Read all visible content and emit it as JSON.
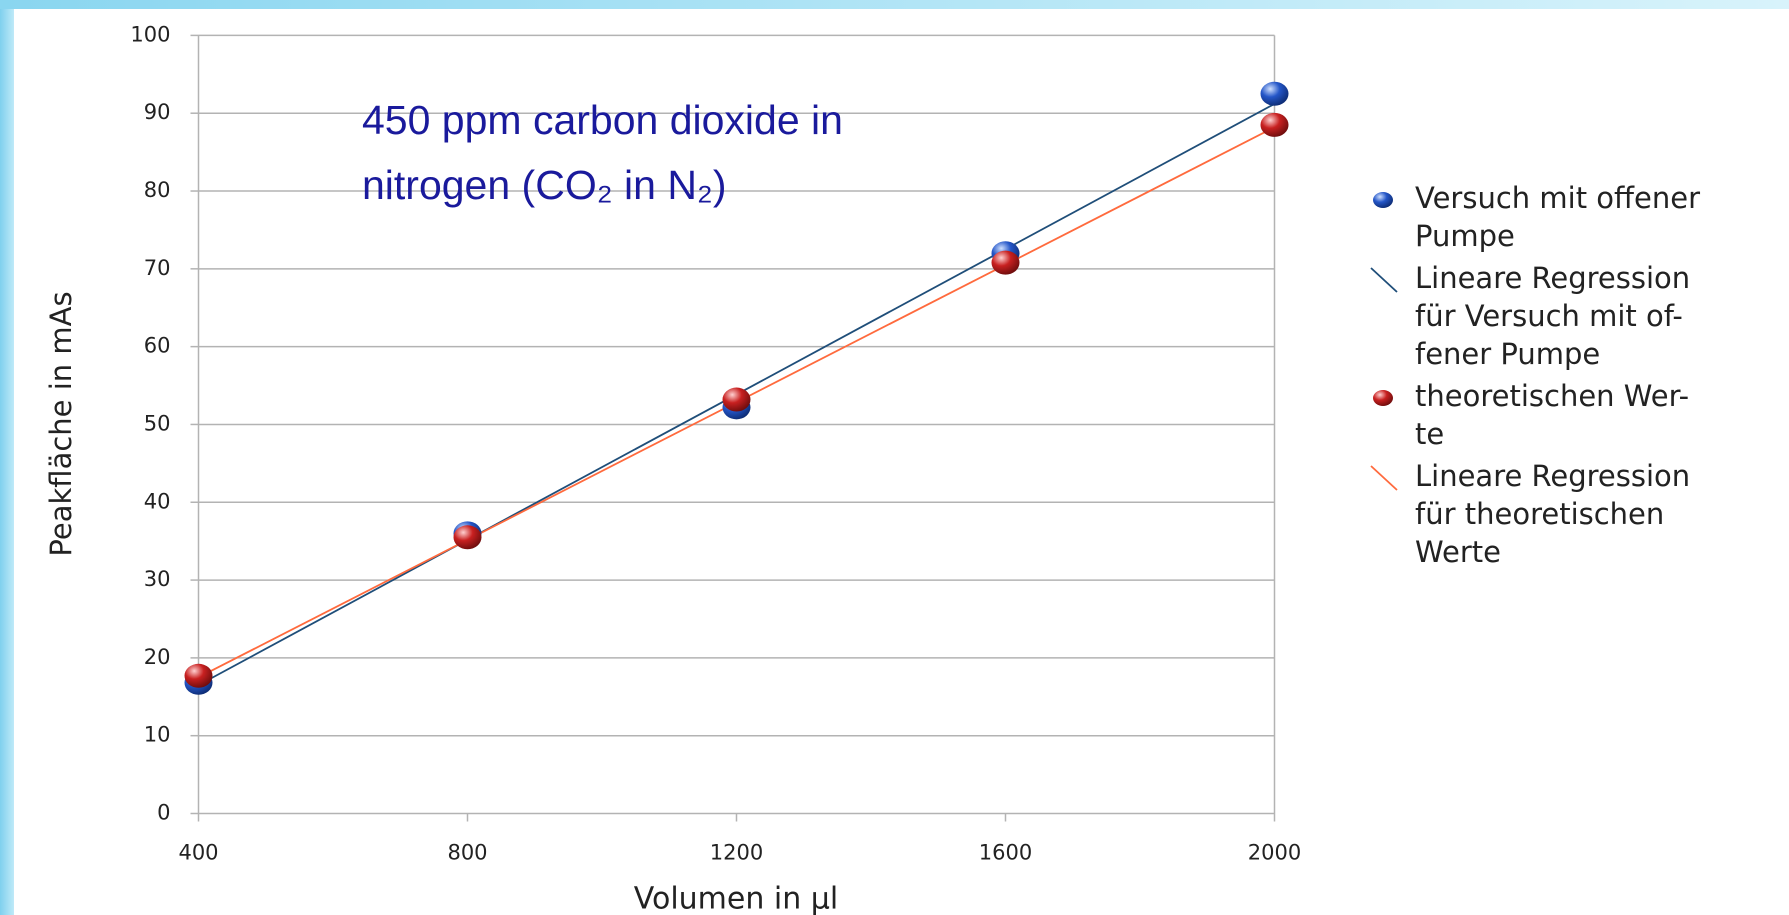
{
  "chart_data": {
    "type": "scatter",
    "annotation": "450 ppm carbon dioxide in nitrogen (CO₂ in N₂)",
    "xlabel": "Volumen in µl",
    "ylabel": "Peakfläche in mAs",
    "xlim": [
      400,
      2000
    ],
    "xticks": [
      400,
      800,
      1200,
      1600,
      2000
    ],
    "ylim": [
      0,
      100
    ],
    "yticks": [
      0,
      10,
      20,
      30,
      40,
      50,
      60,
      70,
      80,
      90,
      100
    ],
    "grid": true,
    "legend": "right",
    "series": [
      {
        "name": "Versuch mit offener\nPumpe",
        "color": "#2456c8",
        "mode": "markers",
        "x": [
          400,
          800,
          1200,
          1600,
          2000
        ],
        "values": [
          16.8,
          36,
          52.2,
          72,
          92.5
        ]
      },
      {
        "name": "Lineare Regression\nfür Versuch mit of-\nfener Pumpe",
        "color": "#1f4e79",
        "mode": "line",
        "x": [
          400,
          2000
        ],
        "values": [
          16.5,
          91.2
        ]
      },
      {
        "name": "theoretischen Wer-\nte",
        "color": "#c82020",
        "mode": "markers",
        "x": [
          400,
          800,
          1200,
          1600,
          2000
        ],
        "values": [
          17.7,
          35.5,
          53.2,
          70.8,
          88.5
        ]
      },
      {
        "name": "Lineare Regression\nfür theoretischen\nWerte",
        "color": "#ff6a3d",
        "mode": "line",
        "x": [
          400,
          2000
        ],
        "values": [
          17.5,
          88.2
        ]
      }
    ]
  }
}
